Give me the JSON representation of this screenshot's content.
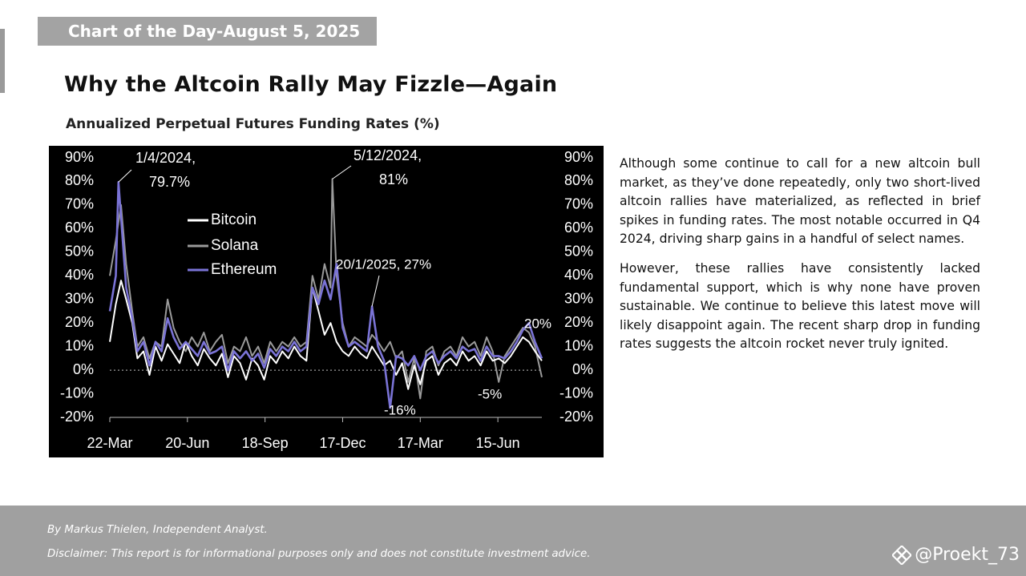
{
  "header": {
    "tag": "Chart of the Day-August 5, 2025",
    "title": "Why the Altcoin Rally May Fizzle—Again",
    "subtitle": "Annualized Perpetual Futures Funding Rates (%)"
  },
  "commentary": {
    "paragraphs": [
      "Although some continue to call for a new altcoin bull market, as they’ve done repeatedly, only two short-lived altcoin rallies have materialized, as reflected in brief spikes in funding rates. The most notable occurred in Q4 2024, driving sharp gains in a handful of select names.",
      "However, these rallies have consistently lacked fundamental support, which is why none have proven sustainable. We continue to believe this latest move will likely disappoint again. The recent sharp drop in funding rates suggests the altcoin rocket never truly ignited."
    ]
  },
  "footer": {
    "byline": "By Markus Thielen, Independent Analyst.",
    "disclaimer": "Disclaimer: This report is for informational purposes only and does not constitute investment advice.",
    "handle": "@Proekt_73"
  },
  "colors": {
    "chart_background": "#000000",
    "bitcoin": "#ffffff",
    "solana": "#9a9a9a",
    "ethereum": "#7a73d6",
    "tag_background": "#a3a3a3",
    "footer_background": "#a0a0a0"
  },
  "chart_data": {
    "type": "line",
    "title": "Annualized Perpetual Futures Funding Rates (%)",
    "xlabel": "",
    "ylabel": "",
    "ylim": [
      -20,
      90
    ],
    "yticks": [
      90,
      80,
      70,
      60,
      50,
      40,
      30,
      20,
      10,
      0,
      -10,
      -20
    ],
    "ytick_labels": [
      "90%",
      "80%",
      "70%",
      "60%",
      "50%",
      "40%",
      "30%",
      "20%",
      "10%",
      "0%",
      "-10%",
      "-20%"
    ],
    "xlim": [
      "2024-03-22",
      "2025-08-05"
    ],
    "xticks": [
      "2024-03-22",
      "2024-06-20",
      "2024-09-18",
      "2024-12-17",
      "2025-03-17",
      "2025-06-15"
    ],
    "xtick_labels": [
      "22-Mar",
      "20-Jun",
      "18-Sep",
      "17-Dec",
      "17-Mar",
      "15-Jun"
    ],
    "grid": false,
    "zero_line": "dotted",
    "legend": "upper-left",
    "series": [
      {
        "name": "Bitcoin",
        "color": "#ffffff",
        "points": [
          [
            "2024-03-22",
            12
          ],
          [
            "2024-03-29",
            28
          ],
          [
            "2024-04-04",
            38
          ],
          [
            "2024-04-10",
            30
          ],
          [
            "2024-04-17",
            20
          ],
          [
            "2024-04-23",
            5
          ],
          [
            "2024-04-30",
            8
          ],
          [
            "2024-05-07",
            -2
          ],
          [
            "2024-05-14",
            10
          ],
          [
            "2024-05-21",
            4
          ],
          [
            "2024-05-28",
            11
          ],
          [
            "2024-06-04",
            7
          ],
          [
            "2024-06-11",
            3
          ],
          [
            "2024-06-18",
            12
          ],
          [
            "2024-06-25",
            6
          ],
          [
            "2024-07-02",
            2
          ],
          [
            "2024-07-09",
            9
          ],
          [
            "2024-07-16",
            5
          ],
          [
            "2024-07-23",
            2
          ],
          [
            "2024-07-30",
            7
          ],
          [
            "2024-08-06",
            -3
          ],
          [
            "2024-08-13",
            6
          ],
          [
            "2024-08-20",
            3
          ],
          [
            "2024-08-27",
            -4
          ],
          [
            "2024-09-03",
            5
          ],
          [
            "2024-09-10",
            2
          ],
          [
            "2024-09-17",
            -4
          ],
          [
            "2024-09-24",
            6
          ],
          [
            "2024-10-01",
            3
          ],
          [
            "2024-10-08",
            8
          ],
          [
            "2024-10-15",
            5
          ],
          [
            "2024-10-22",
            10
          ],
          [
            "2024-10-29",
            6
          ],
          [
            "2024-11-05",
            4
          ],
          [
            "2024-11-12",
            35
          ],
          [
            "2024-11-19",
            25
          ],
          [
            "2024-11-26",
            15
          ],
          [
            "2024-12-03",
            20
          ],
          [
            "2024-12-10",
            12
          ],
          [
            "2024-12-17",
            8
          ],
          [
            "2024-12-24",
            6
          ],
          [
            "2024-12-31",
            10
          ],
          [
            "2025-01-07",
            7
          ],
          [
            "2025-01-14",
            5
          ],
          [
            "2025-01-20",
            10
          ],
          [
            "2025-01-27",
            6
          ],
          [
            "2025-02-03",
            2
          ],
          [
            "2025-02-10",
            4
          ],
          [
            "2025-02-17",
            -2
          ],
          [
            "2025-02-24",
            3
          ],
          [
            "2025-03-03",
            -8
          ],
          [
            "2025-03-10",
            2
          ],
          [
            "2025-03-17",
            -6
          ],
          [
            "2025-03-24",
            4
          ],
          [
            "2025-03-31",
            6
          ],
          [
            "2025-04-07",
            -2
          ],
          [
            "2025-04-14",
            3
          ],
          [
            "2025-04-21",
            5
          ],
          [
            "2025-04-28",
            2
          ],
          [
            "2025-05-05",
            8
          ],
          [
            "2025-05-12",
            4
          ],
          [
            "2025-05-19",
            6
          ],
          [
            "2025-05-26",
            2
          ],
          [
            "2025-06-02",
            8
          ],
          [
            "2025-06-09",
            4
          ],
          [
            "2025-06-16",
            5
          ],
          [
            "2025-06-23",
            3
          ],
          [
            "2025-06-30",
            6
          ],
          [
            "2025-07-07",
            10
          ],
          [
            "2025-07-14",
            14
          ],
          [
            "2025-07-21",
            12
          ],
          [
            "2025-07-28",
            8
          ],
          [
            "2025-08-05",
            4
          ]
        ]
      },
      {
        "name": "Solana",
        "color": "#9a9a9a",
        "points": [
          [
            "2024-03-22",
            40
          ],
          [
            "2024-03-29",
            55
          ],
          [
            "2024-04-04",
            70
          ],
          [
            "2024-04-10",
            45
          ],
          [
            "2024-04-17",
            25
          ],
          [
            "2024-04-23",
            10
          ],
          [
            "2024-04-30",
            14
          ],
          [
            "2024-05-07",
            5
          ],
          [
            "2024-05-14",
            12
          ],
          [
            "2024-05-21",
            10
          ],
          [
            "2024-05-28",
            30
          ],
          [
            "2024-06-04",
            18
          ],
          [
            "2024-06-11",
            12
          ],
          [
            "2024-06-18",
            8
          ],
          [
            "2024-06-25",
            14
          ],
          [
            "2024-07-02",
            10
          ],
          [
            "2024-07-09",
            16
          ],
          [
            "2024-07-16",
            8
          ],
          [
            "2024-07-23",
            12
          ],
          [
            "2024-07-30",
            15
          ],
          [
            "2024-08-06",
            3
          ],
          [
            "2024-08-13",
            10
          ],
          [
            "2024-08-20",
            8
          ],
          [
            "2024-08-27",
            14
          ],
          [
            "2024-09-03",
            6
          ],
          [
            "2024-09-10",
            10
          ],
          [
            "2024-09-17",
            3
          ],
          [
            "2024-09-24",
            12
          ],
          [
            "2024-10-01",
            8
          ],
          [
            "2024-10-08",
            12
          ],
          [
            "2024-10-15",
            10
          ],
          [
            "2024-10-22",
            14
          ],
          [
            "2024-10-29",
            10
          ],
          [
            "2024-11-05",
            12
          ],
          [
            "2024-11-12",
            40
          ],
          [
            "2024-11-19",
            30
          ],
          [
            "2024-11-26",
            45
          ],
          [
            "2024-12-03",
            35
          ],
          [
            "2024-12-05",
            81
          ],
          [
            "2024-12-10",
            40
          ],
          [
            "2024-12-17",
            20
          ],
          [
            "2024-12-24",
            10
          ],
          [
            "2024-12-31",
            14
          ],
          [
            "2025-01-07",
            12
          ],
          [
            "2025-01-14",
            10
          ],
          [
            "2025-01-20",
            15
          ],
          [
            "2025-01-27",
            12
          ],
          [
            "2025-02-03",
            8
          ],
          [
            "2025-02-10",
            12
          ],
          [
            "2025-02-17",
            5
          ],
          [
            "2025-02-24",
            8
          ],
          [
            "2025-03-03",
            -5
          ],
          [
            "2025-03-10",
            5
          ],
          [
            "2025-03-17",
            -12
          ],
          [
            "2025-03-24",
            8
          ],
          [
            "2025-03-31",
            10
          ],
          [
            "2025-04-07",
            2
          ],
          [
            "2025-04-14",
            8
          ],
          [
            "2025-04-21",
            10
          ],
          [
            "2025-04-28",
            6
          ],
          [
            "2025-05-05",
            14
          ],
          [
            "2025-05-12",
            10
          ],
          [
            "2025-05-19",
            12
          ],
          [
            "2025-05-26",
            6
          ],
          [
            "2025-06-02",
            14
          ],
          [
            "2025-06-09",
            8
          ],
          [
            "2025-06-16",
            -5
          ],
          [
            "2025-06-23",
            6
          ],
          [
            "2025-06-30",
            10
          ],
          [
            "2025-07-07",
            14
          ],
          [
            "2025-07-14",
            18
          ],
          [
            "2025-07-21",
            16
          ],
          [
            "2025-07-28",
            10
          ],
          [
            "2025-08-05",
            -3
          ]
        ]
      },
      {
        "name": "Ethereum",
        "color": "#7a73d6",
        "points": [
          [
            "2024-03-22",
            25
          ],
          [
            "2024-03-29",
            40
          ],
          [
            "2024-04-01",
            79.7
          ],
          [
            "2024-04-10",
            35
          ],
          [
            "2024-04-17",
            22
          ],
          [
            "2024-04-23",
            8
          ],
          [
            "2024-04-30",
            12
          ],
          [
            "2024-05-07",
            2
          ],
          [
            "2024-05-14",
            12
          ],
          [
            "2024-05-21",
            8
          ],
          [
            "2024-05-28",
            22
          ],
          [
            "2024-06-04",
            14
          ],
          [
            "2024-06-11",
            9
          ],
          [
            "2024-06-18",
            12
          ],
          [
            "2024-06-25",
            9
          ],
          [
            "2024-07-02",
            6
          ],
          [
            "2024-07-09",
            12
          ],
          [
            "2024-07-16",
            7
          ],
          [
            "2024-07-23",
            8
          ],
          [
            "2024-07-30",
            10
          ],
          [
            "2024-08-06",
            0
          ],
          [
            "2024-08-13",
            8
          ],
          [
            "2024-08-20",
            5
          ],
          [
            "2024-08-27",
            8
          ],
          [
            "2024-09-03",
            4
          ],
          [
            "2024-09-10",
            7
          ],
          [
            "2024-09-17",
            1
          ],
          [
            "2024-09-24",
            9
          ],
          [
            "2024-10-01",
            6
          ],
          [
            "2024-10-08",
            10
          ],
          [
            "2024-10-15",
            8
          ],
          [
            "2024-10-22",
            12
          ],
          [
            "2024-10-29",
            8
          ],
          [
            "2024-11-05",
            10
          ],
          [
            "2024-11-12",
            35
          ],
          [
            "2024-11-19",
            28
          ],
          [
            "2024-11-26",
            38
          ],
          [
            "2024-12-03",
            30
          ],
          [
            "2024-12-10",
            45
          ],
          [
            "2024-12-17",
            18
          ],
          [
            "2024-12-24",
            10
          ],
          [
            "2024-12-31",
            12
          ],
          [
            "2025-01-07",
            10
          ],
          [
            "2025-01-14",
            8
          ],
          [
            "2025-01-20",
            27
          ],
          [
            "2025-01-27",
            10
          ],
          [
            "2025-02-03",
            4
          ],
          [
            "2025-02-10",
            -16
          ],
          [
            "2025-02-17",
            6
          ],
          [
            "2025-02-24",
            5
          ],
          [
            "2025-03-03",
            2
          ],
          [
            "2025-03-10",
            6
          ],
          [
            "2025-03-17",
            0
          ],
          [
            "2025-03-24",
            6
          ],
          [
            "2025-03-31",
            8
          ],
          [
            "2025-04-07",
            3
          ],
          [
            "2025-04-14",
            6
          ],
          [
            "2025-04-21",
            8
          ],
          [
            "2025-04-28",
            5
          ],
          [
            "2025-05-05",
            10
          ],
          [
            "2025-05-12",
            8
          ],
          [
            "2025-05-19",
            9
          ],
          [
            "2025-05-26",
            4
          ],
          [
            "2025-06-02",
            10
          ],
          [
            "2025-06-09",
            6
          ],
          [
            "2025-06-16",
            6
          ],
          [
            "2025-06-23",
            5
          ],
          [
            "2025-06-30",
            8
          ],
          [
            "2025-07-07",
            12
          ],
          [
            "2025-07-14",
            17
          ],
          [
            "2025-07-21",
            20
          ],
          [
            "2025-07-28",
            12
          ],
          [
            "2025-08-05",
            5
          ]
        ]
      }
    ],
    "annotations": [
      {
        "text_lines": [
          "1/4/2024,",
          "79.7%"
        ],
        "x": "2024-04-01",
        "y": 79.7
      },
      {
        "text_lines": [
          "5/12/2024,",
          "81%"
        ],
        "x": "2024-12-05",
        "y": 81
      },
      {
        "text_lines": [
          "20/1/2025, 27%"
        ],
        "x": "2025-01-20",
        "y": 27
      },
      {
        "text_lines": [
          "-16%"
        ],
        "x": "2025-02-10",
        "y": -16
      },
      {
        "text_lines": [
          "-5%"
        ],
        "x": "2025-06-16",
        "y": -5
      },
      {
        "text_lines": [
          "20%"
        ],
        "x": "2025-07-21",
        "y": 20
      }
    ]
  }
}
